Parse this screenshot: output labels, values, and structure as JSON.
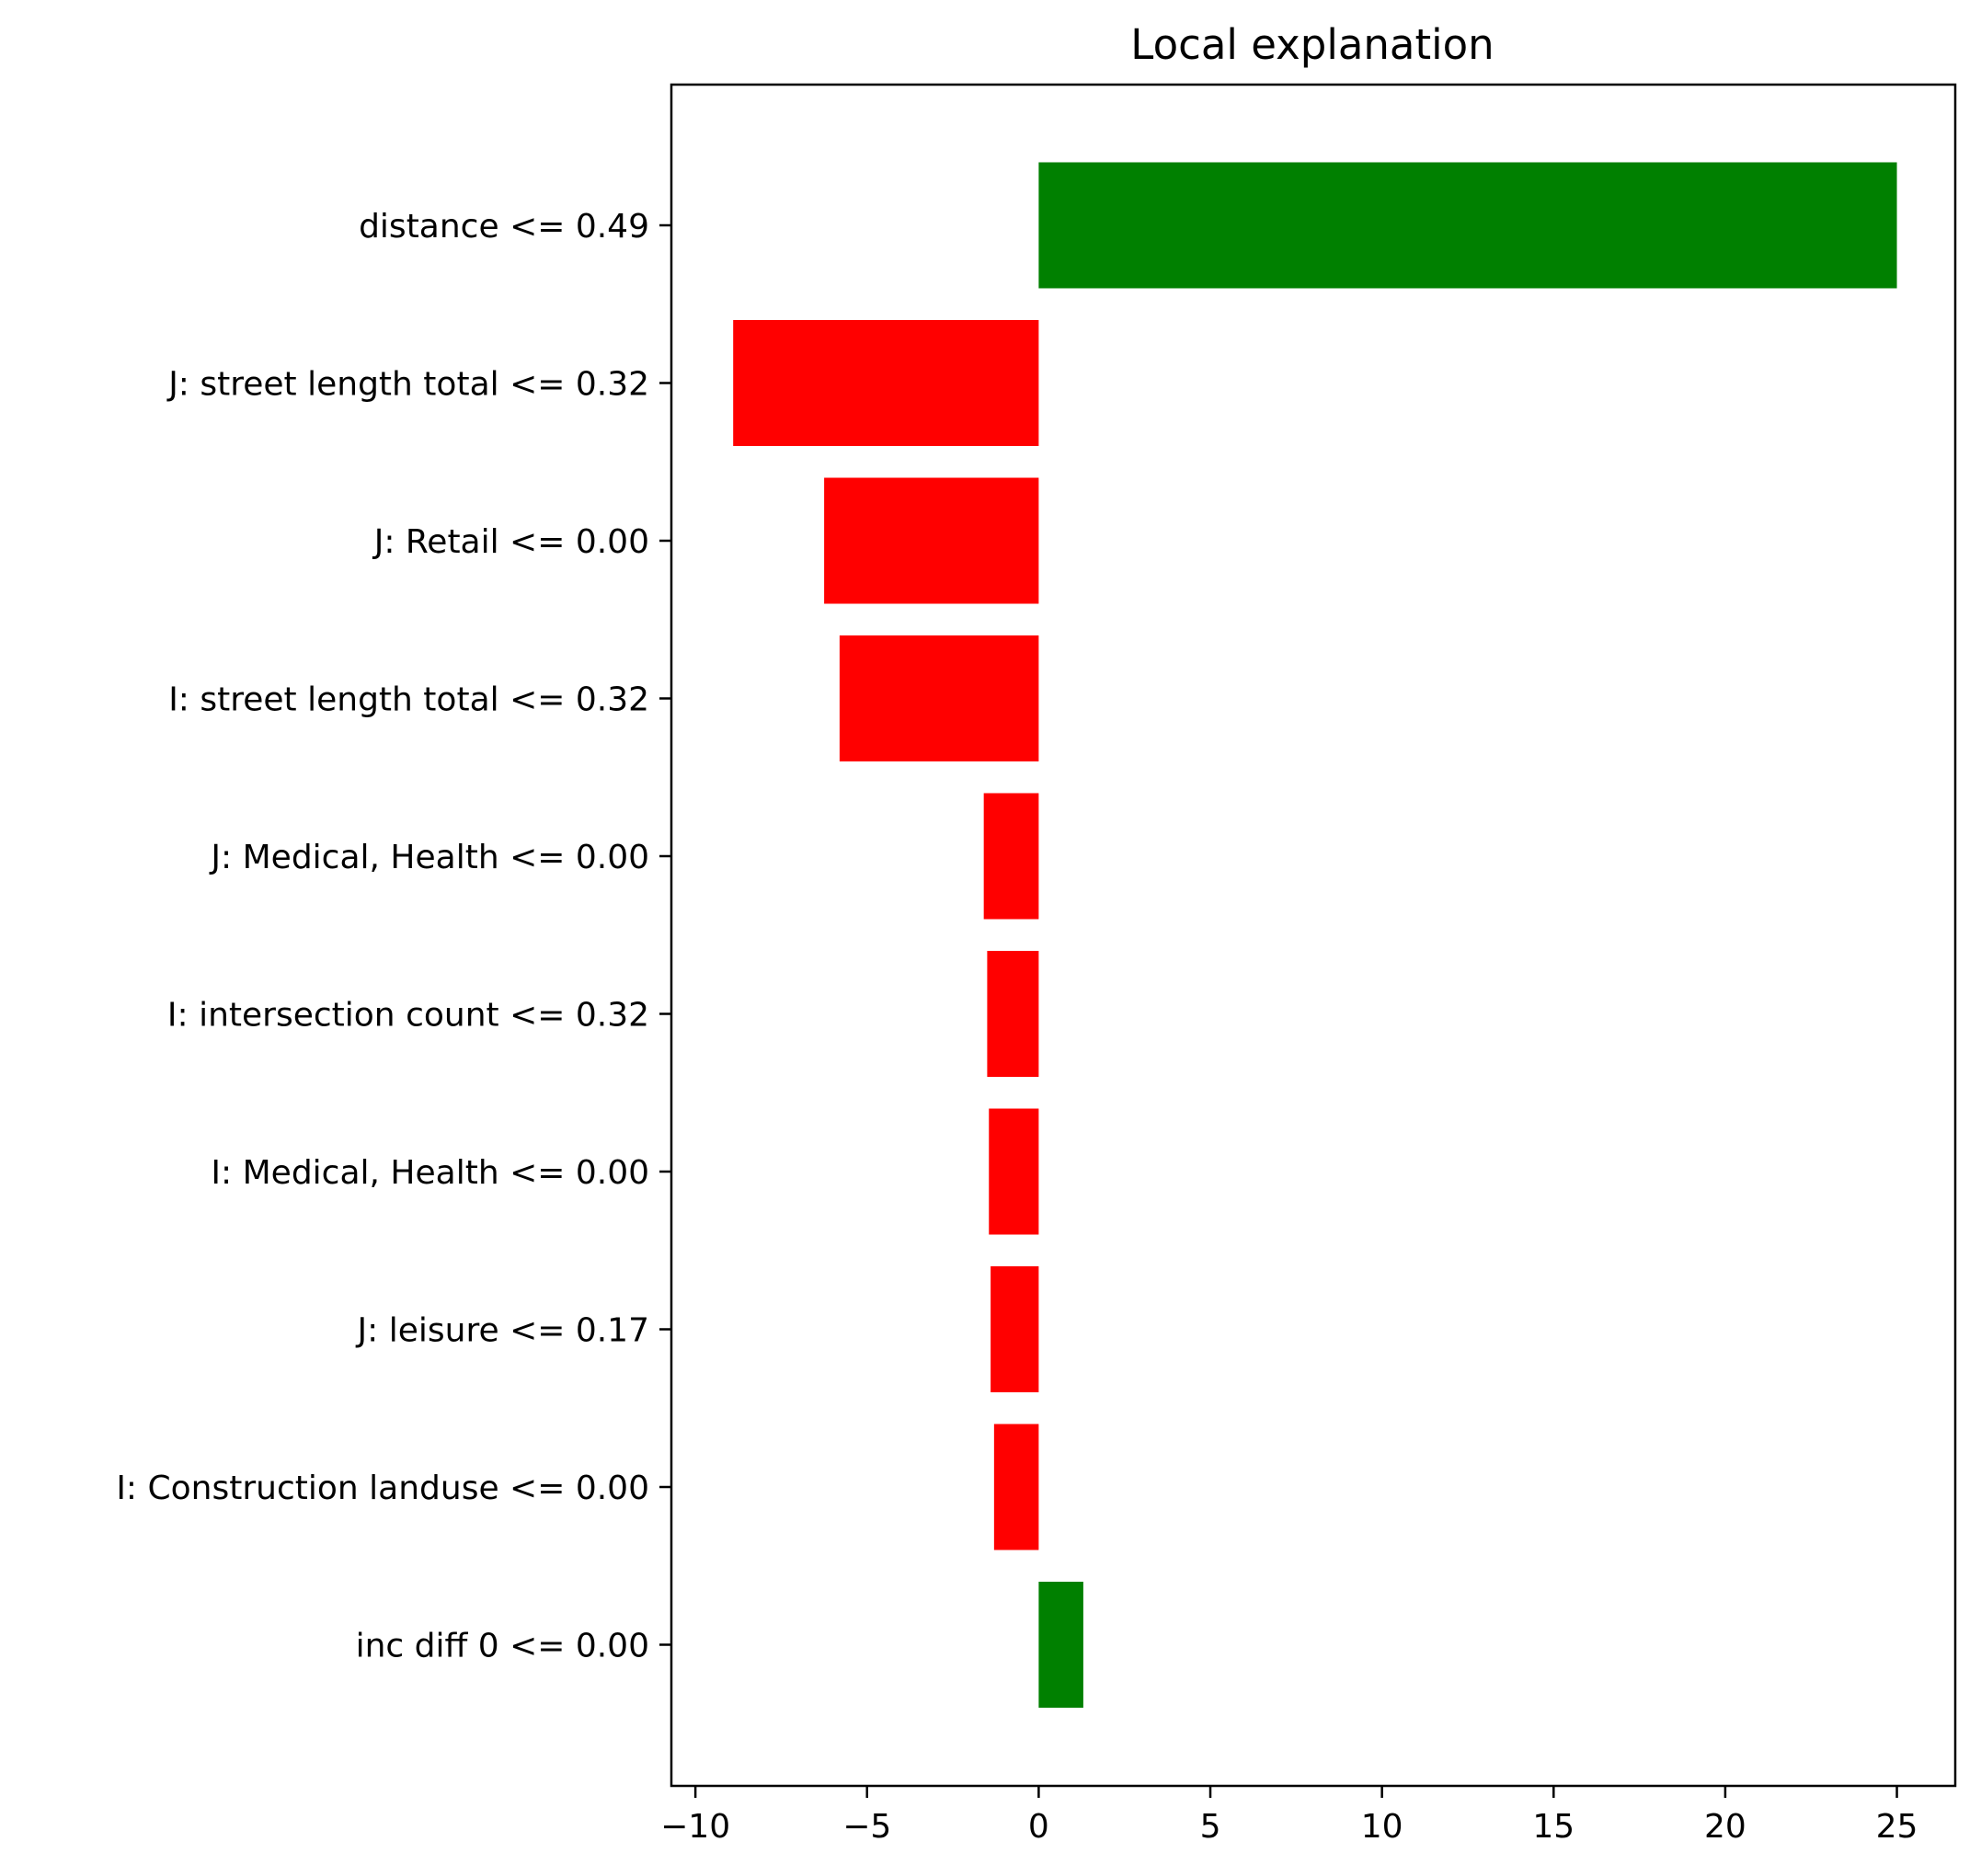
{
  "chart_data": {
    "type": "bar",
    "orientation": "horizontal",
    "title": "Local explanation",
    "xlabel": "",
    "ylabel": "",
    "xlim": [
      -10.7,
      26.7
    ],
    "xticks": [
      -10,
      -5,
      0,
      5,
      10,
      15,
      20,
      25
    ],
    "xtick_labels": [
      "−10",
      "−5",
      "0",
      "5",
      "10",
      "15",
      "20",
      "25"
    ],
    "grid": false,
    "legend": "none",
    "colors": {
      "positive": "#008000",
      "negative": "#ff0000"
    },
    "categories": [
      "distance <= 0.49",
      "J: street length total <= 0.32",
      "J: Retail <= 0.00",
      "I: street length total <= 0.32",
      "J: Medical, Health <= 0.00",
      "I: intersection count <= 0.32",
      "I: Medical, Health <= 0.00",
      "J: leisure <= 0.17",
      "I: Construction landuse <= 0.00",
      "inc diff 0 <= 0.00"
    ],
    "values": [
      25.0,
      -8.9,
      -6.25,
      -5.8,
      -1.6,
      -1.5,
      -1.45,
      -1.4,
      -1.3,
      1.3
    ]
  }
}
